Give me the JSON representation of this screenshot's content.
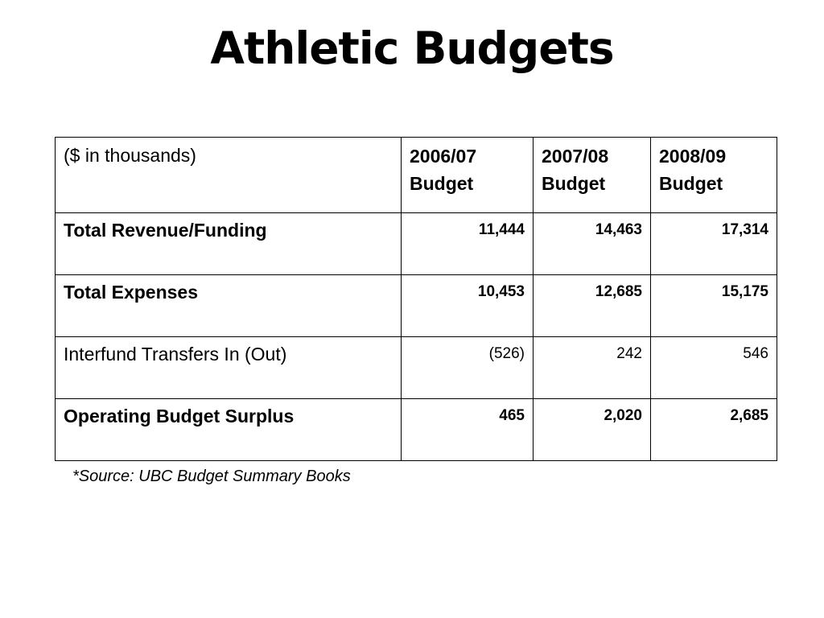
{
  "slide": {
    "title": "Athletic Budgets"
  },
  "table": {
    "units_label": "($ in thousands)",
    "columns": [
      {
        "year": "2006/07",
        "suffix": "Budget"
      },
      {
        "year": "2007/08",
        "suffix": "Budget"
      },
      {
        "year": "2008/09",
        "suffix": "Budget"
      }
    ],
    "rows": [
      {
        "label": "Total Revenue/Funding",
        "values": [
          "11,444",
          "14,463",
          "17,314"
        ]
      },
      {
        "label": "Total Expenses",
        "values": [
          "10,453",
          "12,685",
          "15,175"
        ]
      },
      {
        "label": "Interfund Transfers In (Out)",
        "values": [
          "(526)",
          "242",
          "546"
        ]
      },
      {
        "label": "Operating Budget Surplus",
        "values": [
          "465",
          "2,020",
          "2,685"
        ]
      }
    ]
  },
  "footnote": "*Source: UBC Budget Summary Books"
}
